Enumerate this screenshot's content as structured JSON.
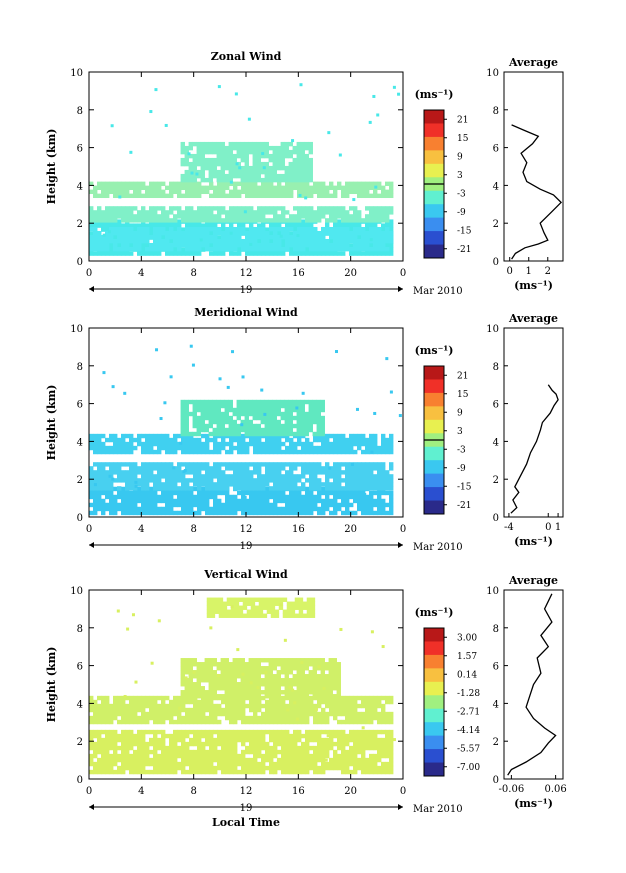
{
  "colorbar_colors": [
    "#2a2a8a",
    "#2a4fd0",
    "#3a8ef0",
    "#3ac8f0",
    "#60f0d0",
    "#a0f080",
    "#e8f050",
    "#f8c040",
    "#f88030",
    "#f03028",
    "#b81818"
  ],
  "chart_data": [
    {
      "type": "heatmap",
      "title": "Zonal Wind",
      "ylabel": "Height (km)",
      "xticks": [
        "0",
        "4",
        "8",
        "12",
        "16",
        "20",
        "0"
      ],
      "yticks": [
        "0",
        "2",
        "4",
        "6",
        "8",
        "10"
      ],
      "xlim": [
        0,
        24
      ],
      "ylim": [
        0,
        10
      ],
      "date_center": "19",
      "date_right": "Mar 2010",
      "colorbar": {
        "unit": "(ms⁻¹)",
        "ticks": [
          "21",
          "15",
          "9",
          "3",
          "-3",
          "-9",
          "-15",
          "-21"
        ],
        "zero_line": true
      },
      "layers": [
        {
          "x0": 0,
          "x1": 23,
          "y0": 0.4,
          "y1": 2.2,
          "color": "#48e8e8"
        },
        {
          "x0": 0,
          "x1": 23,
          "y0": 2.2,
          "y1": 2.9,
          "color": "#80f0c8"
        },
        {
          "x0": 0,
          "x1": 23,
          "y0": 3.5,
          "y1": 4.2,
          "color": "#98f0b0"
        },
        {
          "x0": 7,
          "x1": 17,
          "y0": 4.2,
          "y1": 6.3,
          "color": "#80f0c8"
        },
        {
          "x0": 0,
          "x1": 23,
          "y0": 0.6,
          "y1": 1.8,
          "color": "#50e8f0"
        }
      ],
      "profile": {
        "title": "Average",
        "xlabel": "(ms⁻¹)",
        "xticks": [
          "0",
          "1",
          "2"
        ],
        "xlim": [
          -0.3,
          2.8
        ],
        "points": [
          [
            0.1,
            0.1
          ],
          [
            0.3,
            0.4
          ],
          [
            0.8,
            0.7
          ],
          [
            1.5,
            0.9
          ],
          [
            2.0,
            1.1
          ],
          [
            1.8,
            1.5
          ],
          [
            1.6,
            2.0
          ],
          [
            2.2,
            2.6
          ],
          [
            2.7,
            3.1
          ],
          [
            2.3,
            3.5
          ],
          [
            1.6,
            3.8
          ],
          [
            0.9,
            4.2
          ],
          [
            0.7,
            4.7
          ],
          [
            0.9,
            5.2
          ],
          [
            0.6,
            5.7
          ],
          [
            1.2,
            6.2
          ],
          [
            1.5,
            6.6
          ],
          [
            0.8,
            6.9
          ],
          [
            0.1,
            7.2
          ]
        ]
      }
    },
    {
      "type": "heatmap",
      "title": "Meridional Wind",
      "ylabel": "Height (km)",
      "xticks": [
        "0",
        "4",
        "8",
        "12",
        "16",
        "20",
        "0"
      ],
      "yticks": [
        "0",
        "2",
        "4",
        "6",
        "8",
        "10"
      ],
      "xlim": [
        0,
        24
      ],
      "ylim": [
        0,
        10
      ],
      "date_center": "19",
      "date_right": "Mar 2010",
      "colorbar": {
        "unit": "(ms⁻¹)",
        "ticks": [
          "21",
          "15",
          "9",
          "3",
          "-3",
          "-9",
          "-15",
          "-21"
        ],
        "zero_line": true
      },
      "layers": [
        {
          "x0": 0,
          "x1": 23,
          "y0": 0.3,
          "y1": 1.6,
          "color": "#38c8f0"
        },
        {
          "x0": 0,
          "x1": 23,
          "y0": 1.6,
          "y1": 2.9,
          "color": "#48d0f0"
        },
        {
          "x0": 0,
          "x1": 23,
          "y0": 3.4,
          "y1": 4.4,
          "color": "#40d0f0"
        },
        {
          "x0": 7,
          "x1": 18,
          "y0": 4.4,
          "y1": 6.2,
          "color": "#60e8c0"
        }
      ],
      "profile": {
        "title": "Average",
        "xlabel": "(ms⁻¹)",
        "xticks": [
          "-4",
          "0",
          "1"
        ],
        "xlim": [
          -4.5,
          1.5
        ],
        "points": [
          [
            -3.8,
            0.2
          ],
          [
            -3.2,
            0.5
          ],
          [
            -3.6,
            0.9
          ],
          [
            -3.0,
            1.3
          ],
          [
            -3.4,
            1.6
          ],
          [
            -2.8,
            2.2
          ],
          [
            -2.2,
            2.8
          ],
          [
            -1.8,
            3.4
          ],
          [
            -1.2,
            4.0
          ],
          [
            -0.8,
            4.6
          ],
          [
            -0.6,
            5.0
          ],
          [
            0.2,
            5.5
          ],
          [
            0.6,
            5.9
          ],
          [
            1.0,
            6.2
          ],
          [
            0.8,
            6.5
          ],
          [
            0.4,
            6.7
          ],
          [
            0.0,
            7.0
          ]
        ]
      }
    },
    {
      "type": "heatmap",
      "title": "Vertical Wind",
      "ylabel": "Height (km)",
      "xlabel": "Local Time",
      "xticks": [
        "0",
        "4",
        "8",
        "12",
        "16",
        "20",
        "0"
      ],
      "yticks": [
        "0",
        "2",
        "4",
        "6",
        "8",
        "10"
      ],
      "xlim": [
        0,
        24
      ],
      "ylim": [
        0,
        10
      ],
      "date_center": "19",
      "date_right": "Mar 2010",
      "colorbar": {
        "unit": "(ms⁻¹)",
        "ticks": [
          "3.00",
          "1.57",
          "0.14",
          "-1.28",
          "-2.71",
          "-4.14",
          "-5.57",
          "-7.00"
        ],
        "zero_line": false
      },
      "layers": [
        {
          "x0": 0,
          "x1": 23,
          "y0": 0.4,
          "y1": 2.6,
          "color": "#d8f060"
        },
        {
          "x0": 0,
          "x1": 23,
          "y0": 3.0,
          "y1": 4.4,
          "color": "#d0f068"
        },
        {
          "x0": 7,
          "x1": 19,
          "y0": 4.4,
          "y1": 6.4,
          "color": "#d0f068"
        },
        {
          "x0": 9,
          "x1": 17,
          "y0": 8.6,
          "y1": 9.6,
          "color": "#d8f468"
        }
      ],
      "profile": {
        "title": "Average",
        "xlabel": "(ms⁻¹)",
        "xticks": [
          "-0.06",
          "0.06"
        ],
        "xlim": [
          -0.08,
          0.08
        ],
        "points": [
          [
            -0.07,
            0.2
          ],
          [
            -0.06,
            0.5
          ],
          [
            -0.02,
            0.9
          ],
          [
            0.02,
            1.4
          ],
          [
            0.04,
            1.9
          ],
          [
            0.06,
            2.3
          ],
          [
            0.03,
            2.7
          ],
          [
            0.0,
            3.2
          ],
          [
            -0.02,
            3.8
          ],
          [
            -0.01,
            4.4
          ],
          [
            0.0,
            5.0
          ],
          [
            0.02,
            5.6
          ],
          [
            0.01,
            6.4
          ],
          [
            0.04,
            7.0
          ],
          [
            0.02,
            7.6
          ],
          [
            0.05,
            8.3
          ],
          [
            0.03,
            9.0
          ],
          [
            0.05,
            9.8
          ]
        ]
      }
    }
  ]
}
